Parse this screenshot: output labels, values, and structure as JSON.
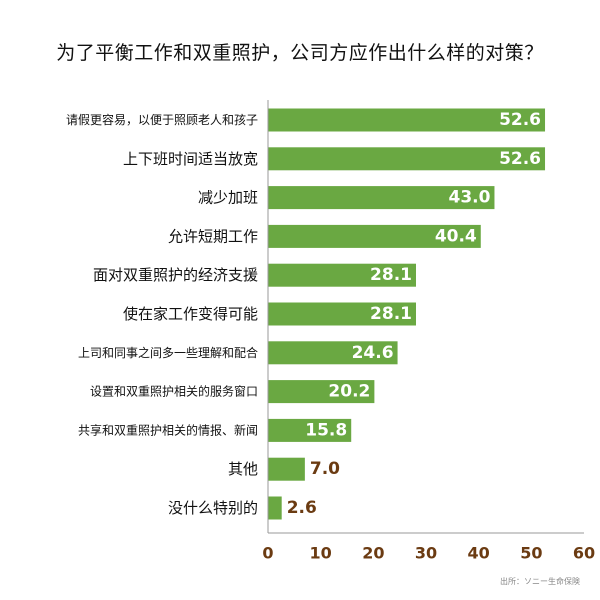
{
  "chart_data": {
    "type": "bar",
    "orientation": "horizontal",
    "title": "为了平衡工作和双重照护，公司方应作出什么样的对策？",
    "categories": [
      "请假更容易，以便于照顾老人和孩子",
      "上下班时间适当放宽",
      "减少加班",
      "允许短期工作",
      "面对双重照护的经济支援",
      "使在家工作变得可能",
      "上司和同事之间多一些理解和配合",
      "设置和双重照护相关的服务窗口",
      "共享和双重照护相关的情报、新闻",
      "其他",
      "没什么特别的"
    ],
    "values": [
      52.6,
      52.6,
      43.0,
      40.4,
      28.1,
      28.1,
      24.6,
      20.2,
      15.8,
      7.0,
      2.6
    ],
    "value_labels": [
      "52.6",
      "52.6",
      "43.0",
      "40.4",
      "28.1",
      "28.1",
      "24.6",
      "20.2",
      "15.8",
      "7.0",
      "2.6"
    ],
    "xlim": [
      0,
      60
    ],
    "xticks": [
      0,
      10,
      20,
      30,
      40,
      50,
      60
    ],
    "grid": false,
    "bar_color": "#6aa842",
    "axis_color": "#6b3b12",
    "source": "出所：ソニー生命保険"
  }
}
